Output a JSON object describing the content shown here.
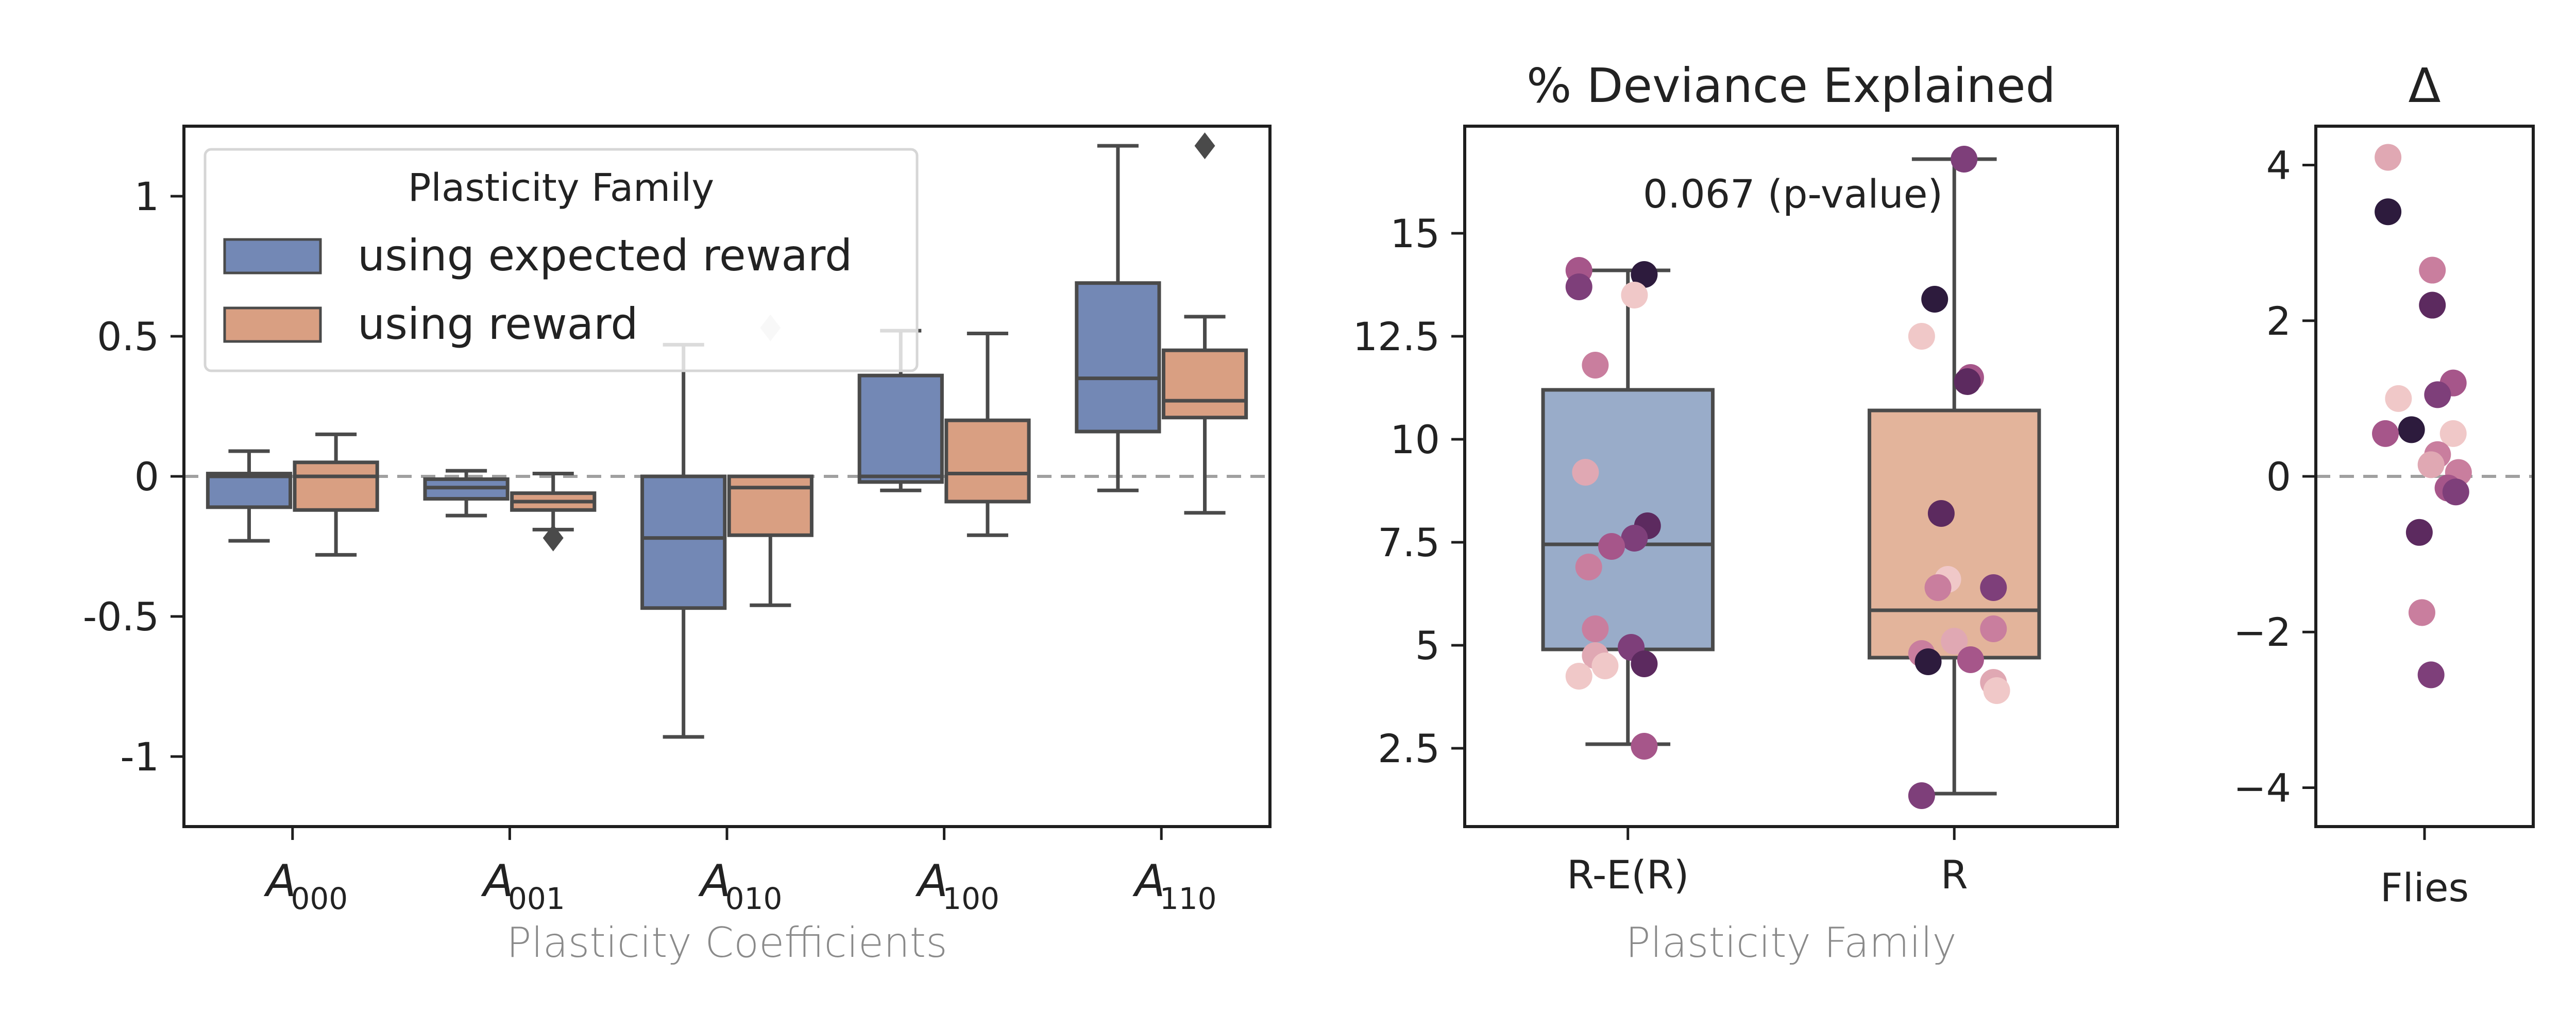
{
  "colors": {
    "expected": "#7388b5",
    "reward": "#d99f82",
    "expected_light": "#99acc9",
    "reward_light": "#e3b49b",
    "whisker": "#4a4a4a",
    "reference": "#a0a0a0",
    "dots": [
      "#2d1b3d",
      "#5c2a5f",
      "#7e3f7a",
      "#a6568a",
      "#c97e9e",
      "#e0a8b3",
      "#f0c8c8"
    ]
  },
  "chart_data": [
    {
      "id": "coefficients",
      "type": "box",
      "title": "",
      "xlabel": "Plasticity Coefficients",
      "ylabel": "",
      "ylim": [
        -1.25,
        1.25
      ],
      "yticks": [
        {
          "value": 1,
          "label": "1"
        },
        {
          "value": 0.5,
          "label": "0.5"
        },
        {
          "value": 0,
          "label": "0"
        },
        {
          "value": -0.5,
          "label": "-0.5"
        },
        {
          "value": -1,
          "label": "-1"
        }
      ],
      "reference_line": 0,
      "categories": [
        {
          "main": "A",
          "sub": "000"
        },
        {
          "main": "A",
          "sub": "001"
        },
        {
          "main": "A",
          "sub": "010"
        },
        {
          "main": "A",
          "sub": "100"
        },
        {
          "main": "A",
          "sub": "110"
        }
      ],
      "legend": {
        "title": "Plasticity Family",
        "position": "top-left",
        "entries": [
          "using expected reward",
          "using reward"
        ]
      },
      "series": [
        {
          "name": "using expected reward",
          "color_key": "expected",
          "boxes": [
            {
              "whislo": -0.23,
              "q1": -0.11,
              "med": 0.0,
              "q3": 0.01,
              "whishi": 0.09,
              "fliers": []
            },
            {
              "whislo": -0.14,
              "q1": -0.08,
              "med": -0.04,
              "q3": -0.01,
              "whishi": 0.02,
              "fliers": []
            },
            {
              "whislo": -0.93,
              "q1": -0.47,
              "med": -0.22,
              "q3": 0.0,
              "whishi": 0.47,
              "fliers": []
            },
            {
              "whislo": -0.05,
              "q1": -0.02,
              "med": 0.0,
              "q3": 0.36,
              "whishi": 0.52,
              "fliers": []
            },
            {
              "whislo": -0.05,
              "q1": 0.16,
              "med": 0.35,
              "q3": 0.69,
              "whishi": 1.18,
              "fliers": []
            }
          ]
        },
        {
          "name": "using reward",
          "color_key": "reward",
          "boxes": [
            {
              "whislo": -0.28,
              "q1": -0.12,
              "med": 0.0,
              "q3": 0.05,
              "whishi": 0.15,
              "fliers": []
            },
            {
              "whislo": -0.19,
              "q1": -0.12,
              "med": -0.09,
              "q3": -0.06,
              "whishi": 0.01,
              "fliers": [
                -0.22
              ]
            },
            {
              "whislo": -0.46,
              "q1": -0.21,
              "med": -0.04,
              "q3": 0.0,
              "whishi": 0.0,
              "fliers": [
                0.53
              ]
            },
            {
              "whislo": -0.21,
              "q1": -0.09,
              "med": 0.01,
              "q3": 0.2,
              "whishi": 0.51,
              "fliers": []
            },
            {
              "whislo": -0.13,
              "q1": 0.21,
              "med": 0.27,
              "q3": 0.45,
              "whishi": 0.57,
              "fliers": [
                1.18
              ]
            }
          ]
        }
      ]
    },
    {
      "id": "deviance",
      "type": "box+strip",
      "title": "% Deviance Explained",
      "xlabel": "Plasticity Family",
      "ylabel": "",
      "ylim": [
        0.6,
        17.6
      ],
      "yticks": [
        {
          "value": 15,
          "label": "15"
        },
        {
          "value": 12.5,
          "label": "12.5"
        },
        {
          "value": 10,
          "label": "10"
        },
        {
          "value": 7.5,
          "label": "7.5"
        },
        {
          "value": 5,
          "label": "5"
        },
        {
          "value": 2.5,
          "label": "2.5"
        }
      ],
      "categories": [
        "R-E(R)",
        "R"
      ],
      "annotation": "0.067 (p-value)",
      "boxes": [
        {
          "color_key": "expected_light",
          "whislo": 2.6,
          "q1": 4.9,
          "med": 7.45,
          "q3": 11.2,
          "whishi": 14.1
        },
        {
          "color_key": "reward_light",
          "whislo": 1.4,
          "q1": 4.7,
          "med": 5.85,
          "q3": 10.7,
          "whishi": 16.8
        }
      ],
      "points": [
        [
          {
            "dx": -0.15,
            "y": 14.1,
            "c": 3
          },
          {
            "dx": -0.15,
            "y": 13.7,
            "c": 2
          },
          {
            "dx": 0.05,
            "y": 14.0,
            "c": 0
          },
          {
            "dx": 0.02,
            "y": 13.5,
            "c": 6
          },
          {
            "dx": -0.1,
            "y": 11.8,
            "c": 4
          },
          {
            "dx": -0.13,
            "y": 9.2,
            "c": 5
          },
          {
            "dx": 0.06,
            "y": 7.9,
            "c": 1
          },
          {
            "dx": 0.02,
            "y": 7.6,
            "c": 2
          },
          {
            "dx": -0.05,
            "y": 7.4,
            "c": 3
          },
          {
            "dx": -0.12,
            "y": 6.9,
            "c": 4
          },
          {
            "dx": -0.1,
            "y": 5.4,
            "c": 4
          },
          {
            "dx": 0.01,
            "y": 4.95,
            "c": 2
          },
          {
            "dx": -0.1,
            "y": 4.75,
            "c": 5
          },
          {
            "dx": 0.05,
            "y": 4.55,
            "c": 1
          },
          {
            "dx": -0.07,
            "y": 4.5,
            "c": 6
          },
          {
            "dx": -0.15,
            "y": 4.25,
            "c": 6
          },
          {
            "dx": 0.05,
            "y": 2.55,
            "c": 3
          }
        ],
        [
          {
            "dx": 0.03,
            "y": 16.8,
            "c": 2
          },
          {
            "dx": -0.06,
            "y": 13.4,
            "c": 0
          },
          {
            "dx": -0.1,
            "y": 12.5,
            "c": 6
          },
          {
            "dx": 0.05,
            "y": 11.5,
            "c": 3
          },
          {
            "dx": 0.04,
            "y": 11.4,
            "c": 1
          },
          {
            "dx": -0.04,
            "y": 8.2,
            "c": 1
          },
          {
            "dx": -0.02,
            "y": 6.6,
            "c": 6
          },
          {
            "dx": -0.05,
            "y": 6.4,
            "c": 4
          },
          {
            "dx": 0.12,
            "y": 6.4,
            "c": 2
          },
          {
            "dx": 0.12,
            "y": 5.4,
            "c": 4
          },
          {
            "dx": 0.0,
            "y": 5.1,
            "c": 5
          },
          {
            "dx": -0.1,
            "y": 4.8,
            "c": 4
          },
          {
            "dx": -0.08,
            "y": 4.6,
            "c": 0
          },
          {
            "dx": 0.05,
            "y": 4.65,
            "c": 3
          },
          {
            "dx": 0.12,
            "y": 4.1,
            "c": 5
          },
          {
            "dx": 0.13,
            "y": 3.9,
            "c": 6
          },
          {
            "dx": -0.1,
            "y": 1.35,
            "c": 2
          }
        ]
      ]
    },
    {
      "id": "delta",
      "type": "strip",
      "title": "Δ",
      "xlabel": "",
      "categories": [
        "Flies"
      ],
      "ylim": [
        -4.5,
        4.5
      ],
      "yticks": [
        {
          "value": 4,
          "label": "4"
        },
        {
          "value": 2,
          "label": "2"
        },
        {
          "value": 0,
          "label": "0"
        },
        {
          "value": -2,
          "label": "−2"
        },
        {
          "value": -4,
          "label": "−4"
        }
      ],
      "reference_line": 0,
      "points": [
        {
          "dx": -0.28,
          "y": 4.1,
          "c": 5
        },
        {
          "dx": -0.28,
          "y": 3.4,
          "c": 0
        },
        {
          "dx": 0.06,
          "y": 2.65,
          "c": 4
        },
        {
          "dx": 0.06,
          "y": 2.2,
          "c": 1
        },
        {
          "dx": 0.22,
          "y": 1.2,
          "c": 3
        },
        {
          "dx": 0.1,
          "y": 1.05,
          "c": 2
        },
        {
          "dx": -0.2,
          "y": 1.0,
          "c": 6
        },
        {
          "dx": -0.1,
          "y": 0.6,
          "c": 0
        },
        {
          "dx": -0.3,
          "y": 0.55,
          "c": 3
        },
        {
          "dx": 0.22,
          "y": 0.55,
          "c": 6
        },
        {
          "dx": 0.1,
          "y": 0.28,
          "c": 4
        },
        {
          "dx": 0.05,
          "y": 0.15,
          "c": 5
        },
        {
          "dx": 0.26,
          "y": 0.05,
          "c": 4
        },
        {
          "dx": 0.18,
          "y": -0.15,
          "c": 3
        },
        {
          "dx": 0.24,
          "y": -0.2,
          "c": 2
        },
        {
          "dx": -0.04,
          "y": -0.72,
          "c": 1
        },
        {
          "dx": -0.02,
          "y": -1.75,
          "c": 4
        },
        {
          "dx": 0.05,
          "y": -2.55,
          "c": 2
        }
      ]
    }
  ]
}
